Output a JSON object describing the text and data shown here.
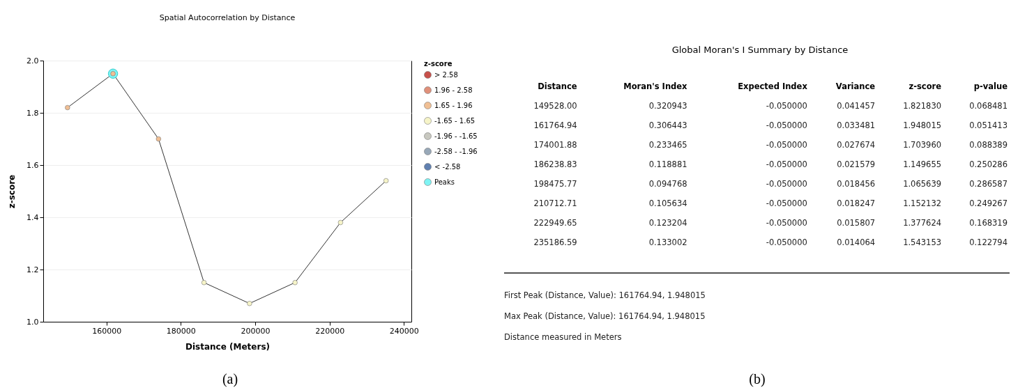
{
  "chart_data": [
    {
      "type": "line",
      "title": "Spatial Autocorrelation by Distance",
      "xlabel": "Distance (Meters)",
      "ylabel": "z-score",
      "legend_title": "z-score",
      "legend": "right",
      "grid": "y",
      "x": [
        149528,
        161765,
        174002,
        186239,
        198476,
        210713,
        222950,
        235187
      ],
      "xlim": [
        143000,
        242000
      ],
      "xticks": [
        160000,
        180000,
        200000,
        220000,
        240000
      ],
      "ylim": [
        1.0,
        2.0
      ],
      "yticks": [
        {
          "value": 1.0,
          "label": "1.0"
        },
        {
          "value": 1.2,
          "label": "1.2"
        },
        {
          "value": 1.4,
          "label": "1.4"
        },
        {
          "value": 1.6,
          "label": "1.6"
        },
        {
          "value": 1.8,
          "label": "1.8"
        },
        {
          "value": 2.0,
          "label": "2.0"
        }
      ],
      "series": [
        {
          "type": "line",
          "color": "#333333",
          "values": [
            1.82,
            1.95,
            1.7,
            1.15,
            1.07,
            1.15,
            1.38,
            1.54
          ]
        },
        {
          "type": "scatter",
          "name": "> 2.58",
          "color": "#c8504a",
          "marker": "circle",
          "values": [
            null,
            null,
            null,
            null,
            null,
            null,
            null,
            null
          ]
        },
        {
          "type": "scatter",
          "name": "1.96 - 2.58",
          "color": "#e0907a",
          "marker": "circle",
          "values": [
            null,
            null,
            null,
            null,
            null,
            null,
            null,
            null
          ]
        },
        {
          "type": "scatter",
          "name": "1.65 - 1.96",
          "color": "#f0bf94",
          "marker": "circle",
          "values": [
            1.82,
            1.95,
            1.7,
            null,
            null,
            null,
            null,
            null
          ]
        },
        {
          "type": "scatter",
          "name": "-1.65 - 1.65",
          "color": "#f6f4c8",
          "marker": "circle",
          "values": [
            null,
            null,
            null,
            1.15,
            1.07,
            1.15,
            1.38,
            1.54
          ]
        },
        {
          "type": "scatter",
          "name": "-1.96 - -1.65",
          "color": "#c8c8c0",
          "marker": "circle",
          "values": [
            null,
            null,
            null,
            null,
            null,
            null,
            null,
            null
          ]
        },
        {
          "type": "scatter",
          "name": "-2.58 - -1.96",
          "color": "#98a8b8",
          "marker": "circle",
          "values": [
            null,
            null,
            null,
            null,
            null,
            null,
            null,
            null
          ]
        },
        {
          "type": "scatter",
          "name": "< -2.58",
          "color": "#6080b0",
          "marker": "circle",
          "values": [
            null,
            null,
            null,
            null,
            null,
            null,
            null,
            null
          ]
        },
        {
          "type": "bubble",
          "name": "Peaks",
          "color": "#7ff4f4",
          "marker": "circle",
          "values": [
            null,
            1.95,
            null,
            null,
            null,
            null,
            null,
            null
          ],
          "sizes": [
            null,
            1,
            null,
            null,
            null,
            null,
            null,
            null
          ]
        }
      ],
      "annotations": [
        "(a)"
      ]
    },
    {
      "type": "other",
      "title": "Global Moran's I Summary by Distance",
      "annotations": [
        "Distance",
        "Moran's Index",
        "Expected Index",
        "Variance",
        "z-score",
        "p-value",
        "149528.00",
        "0.320943",
        "-0.050000",
        "0.041457",
        "1.821830",
        "0.068481",
        "161764.94",
        "0.306443",
        "-0.050000",
        "0.033481",
        "1.948015",
        "0.051413",
        "174001.88",
        "0.233465",
        "-0.050000",
        "0.027674",
        "1.703960",
        "0.088389",
        "186238.83",
        "0.118881",
        "-0.050000",
        "0.021579",
        "1.149655",
        "0.250286",
        "198475.77",
        "0.094768",
        "-0.050000",
        "0.018456",
        "1.065639",
        "0.286587",
        "210712.71",
        "0.105634",
        "-0.050000",
        "0.018247",
        "1.152132",
        "0.249267",
        "222949.65",
        "0.123204",
        "-0.050000",
        "0.015807",
        "1.377624",
        "0.168319",
        "235186.59",
        "0.133002",
        "-0.050000",
        "0.014064",
        "1.543153",
        "0.122794",
        "First Peak (Distance, Value): 161764.94, 1.948015",
        "Max Peak (Distance, Value): 161764.94, 1.948015",
        "Distance measured in Meters",
        "(b)"
      ]
    }
  ]
}
